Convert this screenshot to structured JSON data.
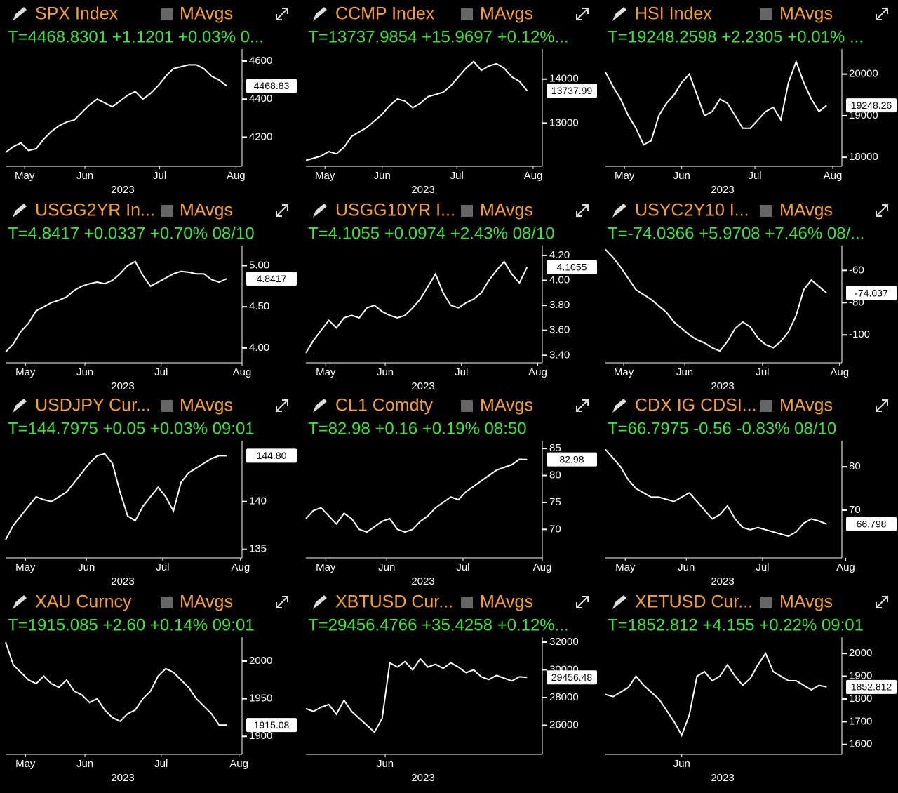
{
  "chart_data": [
    {
      "type": "line",
      "title": "SPX Index",
      "toggle_label": "MAvgs",
      "quote": "T=4468.8301 +1.1201 +0.03% 0...",
      "xlabel": "2023",
      "color": "#ffffff",
      "last_label": "4468.83",
      "values": [
        4120,
        4150,
        4170,
        4130,
        4140,
        4190,
        4230,
        4260,
        4280,
        4290,
        4330,
        4370,
        4400,
        4380,
        4360,
        4390,
        4420,
        4440,
        4400,
        4430,
        4470,
        4520,
        4560,
        4570,
        4580,
        4580,
        4560,
        4520,
        4500,
        4468.83
      ],
      "xlim": [
        0,
        31
      ],
      "xticks": [
        {
          "value": 2.5,
          "label": "May"
        },
        {
          "value": 10.4,
          "label": "Jun"
        },
        {
          "value": 20.2,
          "label": "Jul"
        },
        {
          "value": 30.2,
          "label": "Aug"
        }
      ],
      "ylim": [
        4047,
        4644
      ],
      "yticks": [
        4200,
        4400,
        4600
      ]
    },
    {
      "type": "line",
      "title": "CCMP Index",
      "toggle_label": "MAvgs",
      "quote": "T=13737.9854 +15.9697 +0.12%...",
      "xlabel": "2023",
      "color": "#ffffff",
      "last_label": "13737.99",
      "values": [
        12150,
        12200,
        12250,
        12350,
        12300,
        12450,
        12700,
        12800,
        12900,
        13050,
        13200,
        13400,
        13550,
        13500,
        13350,
        13450,
        13600,
        13650,
        13700,
        13850,
        14050,
        14250,
        14400,
        14200,
        14300,
        14350,
        14250,
        14050,
        13950,
        13737.99
      ],
      "xlim": [
        0,
        31
      ],
      "xticks": [
        {
          "value": 2.5,
          "label": "May"
        },
        {
          "value": 10.0,
          "label": "Jun"
        },
        {
          "value": 19.8,
          "label": "Jul"
        },
        {
          "value": 29.8,
          "label": "Aug"
        }
      ],
      "ylim": [
        12016,
        14603
      ],
      "yticks": [
        13000,
        14000
      ]
    },
    {
      "type": "line",
      "title": "HSI Index",
      "toggle_label": "MAvgs",
      "quote": "T=19248.2598 +2.2305 +0.01% ...",
      "xlabel": "2023",
      "color": "#ffffff",
      "last_label": "19248.26",
      "values": [
        20050,
        19700,
        19400,
        19000,
        18700,
        18300,
        18400,
        19000,
        19300,
        19500,
        19800,
        20000,
        19500,
        19000,
        19100,
        19400,
        19300,
        19000,
        18700,
        18700,
        18900,
        19100,
        19200,
        18900,
        19800,
        20300,
        19800,
        19400,
        19100,
        19248.26
      ],
      "xlim": [
        0,
        31
      ],
      "xticks": [
        {
          "value": 2.5,
          "label": "May"
        },
        {
          "value": 10.0,
          "label": "Jun"
        },
        {
          "value": 19.6,
          "label": "Jul"
        },
        {
          "value": 29.8,
          "label": "Aug"
        }
      ],
      "ylim": [
        17783,
        20517
      ],
      "yticks": [
        18000,
        19000,
        20000
      ]
    },
    {
      "type": "line",
      "title": "USGG2YR In...",
      "toggle_label": "MAvgs",
      "quote": "T=4.8417 +0.0337 +0.70% 08/10",
      "xlabel": "2023",
      "color": "#ffffff",
      "last_label": "4.8417",
      "values": [
        3.95,
        4.05,
        4.2,
        4.3,
        4.45,
        4.5,
        4.55,
        4.58,
        4.62,
        4.7,
        4.75,
        4.78,
        4.8,
        4.78,
        4.82,
        4.9,
        5.0,
        5.05,
        4.88,
        4.75,
        4.8,
        4.85,
        4.9,
        4.93,
        4.92,
        4.9,
        4.9,
        4.83,
        4.8,
        4.8417
      ],
      "xlim": [
        0,
        31
      ],
      "xticks": [
        {
          "value": 2.6,
          "label": "May"
        },
        {
          "value": 10.4,
          "label": "Jun"
        },
        {
          "value": 20.4,
          "label": "Jul"
        },
        {
          "value": 31.0,
          "label": "Aug"
        }
      ],
      "ylim": [
        3.82,
        5.2
      ],
      "yticks": [
        {
          "value": 4,
          "label": "4.00"
        },
        {
          "value": 4.5,
          "label": "4.50"
        },
        {
          "value": 5,
          "label": "5.00"
        }
      ]
    },
    {
      "type": "line",
      "title": "USGG10YR I...",
      "toggle_label": "MAvgs",
      "quote": "T=4.1055 +0.0974 +2.43% 08/10",
      "xlabel": "2023",
      "color": "#ffffff",
      "last_label": "4.1055",
      "values": [
        3.42,
        3.52,
        3.6,
        3.68,
        3.62,
        3.7,
        3.72,
        3.7,
        3.78,
        3.8,
        3.75,
        3.72,
        3.7,
        3.72,
        3.78,
        3.85,
        3.95,
        4.05,
        3.9,
        3.8,
        3.78,
        3.82,
        3.85,
        3.9,
        4.0,
        4.08,
        4.15,
        4.05,
        3.98,
        4.1055
      ],
      "xlim": [
        0,
        31
      ],
      "xticks": [
        {
          "value": 2.6,
          "label": "May"
        },
        {
          "value": 10.4,
          "label": "Jun"
        },
        {
          "value": 20.4,
          "label": "Jul"
        },
        {
          "value": 30.4,
          "label": "Aug"
        }
      ],
      "ylim": [
        3.34,
        4.25
      ],
      "yticks": [
        {
          "value": 3.4,
          "label": "3.40"
        },
        {
          "value": 3.6,
          "label": "3.60"
        },
        {
          "value": 3.8,
          "label": "3.80"
        },
        {
          "value": 4,
          "label": "4.00"
        },
        {
          "value": 4.2,
          "label": "4.20"
        }
      ]
    },
    {
      "type": "line",
      "title": "USYC2Y10 I...",
      "toggle_label": "MAvgs",
      "quote": "T=-74.0366 +5.9708 +7.46% 08/...",
      "xlabel": "2023",
      "color": "#ffffff",
      "last_label": "-74.037",
      "values": [
        -47,
        -52,
        -58,
        -65,
        -72,
        -75,
        -78,
        -82,
        -86,
        -92,
        -96,
        -100,
        -103,
        -105,
        -108,
        -110,
        -104,
        -96,
        -92,
        -95,
        -102,
        -106,
        -108,
        -104,
        -98,
        -88,
        -72,
        -66,
        -70,
        -74.0366
      ],
      "xlim": [
        0,
        31
      ],
      "xticks": [
        {
          "value": 2.4,
          "label": "May"
        },
        {
          "value": 10.4,
          "label": "Jun"
        },
        {
          "value": 20.6,
          "label": "Jul"
        },
        {
          "value": 30.7,
          "label": "Aug"
        }
      ],
      "ylim": [
        -117.3,
        -46.8
      ],
      "yticks": [
        -100,
        -80,
        -60
      ]
    },
    {
      "type": "line",
      "title": "USDJPY Cur...",
      "toggle_label": "MAvgs",
      "quote": "T=144.7975 +0.05 +0.03% 09:01",
      "xlabel": "2023",
      "color": "#ffffff",
      "last_label": "144.80",
      "values": [
        136,
        137.5,
        138.5,
        139.5,
        140.5,
        140.2,
        140,
        140.5,
        141,
        142,
        143,
        144,
        144.8,
        145,
        144,
        141,
        138.5,
        138,
        139.5,
        140.5,
        141.5,
        140.5,
        139,
        142,
        143,
        143.5,
        144,
        144.5,
        144.8,
        144.7975
      ],
      "xlim": [
        0,
        31
      ],
      "xticks": [
        {
          "value": 2.6,
          "label": "May"
        },
        {
          "value": 10.6,
          "label": "Jun"
        },
        {
          "value": 20.6,
          "label": "Jul"
        },
        {
          "value": 30.8,
          "label": "Aug"
        }
      ],
      "ylim": [
        134.1,
        146
      ],
      "yticks": [
        135,
        140
      ]
    },
    {
      "type": "line",
      "title": "CL1 Comdty",
      "toggle_label": "MAvgs",
      "quote": "T=82.98 +0.16 +0.19% 08:50",
      "xlabel": "2023",
      "color": "#ffffff",
      "last_label": "82.98",
      "values": [
        72,
        73.5,
        74,
        72.5,
        71,
        73,
        72,
        70,
        69.5,
        70.5,
        71.5,
        72,
        70,
        69.5,
        70,
        71.5,
        72.5,
        74,
        75,
        76,
        75.5,
        77,
        78,
        79,
        80,
        81,
        81.5,
        82,
        83,
        82.98
      ],
      "xlim": [
        0,
        31
      ],
      "xticks": [
        {
          "value": 2.6,
          "label": "May"
        },
        {
          "value": 10.6,
          "label": "Jun"
        },
        {
          "value": 20.6,
          "label": "Jul"
        },
        {
          "value": 31.0,
          "label": "Aug"
        }
      ],
      "ylim": [
        64.7,
        85.8
      ],
      "yticks": [
        70,
        75,
        80,
        85
      ]
    },
    {
      "type": "line",
      "title": "CDX IG CDSI...",
      "toggle_label": "MAvgs",
      "quote": "T=66.7975 -0.56 -0.83% 08/10",
      "xlabel": "2023",
      "color": "#ffffff",
      "last_label": "66.798",
      "values": [
        84,
        82,
        80,
        77,
        75,
        74,
        73,
        73,
        72.5,
        72,
        73,
        74,
        72,
        70,
        68,
        69,
        71,
        68,
        66,
        65.5,
        66,
        65.5,
        65,
        64.5,
        64,
        65,
        67,
        68,
        67.5,
        66.7975
      ],
      "xlim": [
        0,
        31
      ],
      "xticks": [
        {
          "value": 2.6,
          "label": "May"
        },
        {
          "value": 10.6,
          "label": "Jun"
        },
        {
          "value": 20.6,
          "label": "Jul"
        },
        {
          "value": 31.5,
          "label": "Aug"
        }
      ],
      "ylim": [
        59,
        85.2
      ],
      "yticks": [
        70,
        80
      ]
    },
    {
      "type": "line",
      "title": "XAU Curncy",
      "toggle_label": "MAvgs",
      "quote": "T=1915.085 +2.60 +0.14% 09:01",
      "xlabel": "2023",
      "color": "#ffffff",
      "last_label": "1915.08",
      "values": [
        2025,
        1995,
        1985,
        1975,
        1970,
        1980,
        1970,
        1965,
        1975,
        1960,
        1955,
        1945,
        1950,
        1935,
        1925,
        1920,
        1930,
        1935,
        1950,
        1960,
        1980,
        1990,
        1985,
        1975,
        1965,
        1950,
        1940,
        1930,
        1915,
        1915.08
      ],
      "xlim": [
        0,
        31
      ],
      "xticks": [
        {
          "value": 2.6,
          "label": "May"
        },
        {
          "value": 10.4,
          "label": "Jun"
        },
        {
          "value": 20.4,
          "label": "Jul"
        },
        {
          "value": 30.6,
          "label": "Aug"
        }
      ],
      "ylim": [
        1876,
        2027
      ],
      "yticks": [
        {
          "value": 1900,
          "label": "1900"
        },
        1950,
        2000
      ]
    },
    {
      "type": "line",
      "title": "XBTUSD Cur...",
      "toggle_label": "MAvgs",
      "quote": "T=29456.4766 +35.4258 +0.12%...",
      "xlabel": "2023",
      "color": "#ffffff",
      "last_label": "29456.48",
      "values": [
        27200,
        27000,
        27300,
        27500,
        26800,
        27800,
        27000,
        26500,
        26000,
        25500,
        26500,
        30500,
        30200,
        30600,
        30000,
        30800,
        30200,
        30400,
        30100,
        30500,
        30200,
        29800,
        30000,
        29500,
        29300,
        29600,
        29400,
        29200,
        29500,
        29456.48
      ],
      "xlim": [
        0,
        31
      ],
      "xticks": [
        {
          "value": 10.4,
          "label": "Jun"
        }
      ],
      "ylim": [
        23897,
        32102
      ],
      "yticks": [
        26000,
        28000,
        30000,
        32000
      ]
    },
    {
      "type": "line",
      "title": "XETUSD Cur...",
      "toggle_label": "MAvgs",
      "quote": "T=1852.812 +4.155 +0.22% 09:01",
      "xlabel": "2023",
      "color": "#ffffff",
      "last_label": "1852.812",
      "values": [
        1820,
        1810,
        1830,
        1850,
        1900,
        1860,
        1830,
        1800,
        1750,
        1700,
        1640,
        1730,
        1900,
        1920,
        1880,
        1900,
        1950,
        1900,
        1860,
        1890,
        1950,
        2000,
        1920,
        1900,
        1880,
        1880,
        1860,
        1840,
        1860,
        1852.812
      ],
      "xlim": [
        0,
        31
      ],
      "xticks": [
        {
          "value": 10.0,
          "label": "Jun"
        }
      ],
      "ylim": [
        1556,
        2056
      ],
      "yticks": [
        1600,
        1700,
        1800,
        1900,
        2000
      ]
    }
  ]
}
